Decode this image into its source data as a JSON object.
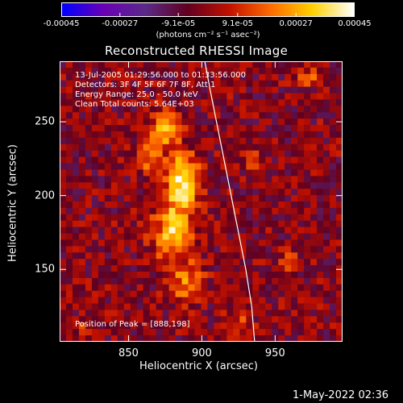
{
  "colorbar": {
    "ticks": [
      "-0.00045",
      "-0.00027",
      "-9.1e-05",
      "9.1e-05",
      "0.00027",
      "0.00045"
    ],
    "tick_values": [
      -0.00045,
      -0.00027,
      -9.1e-05,
      9.1e-05,
      0.00027,
      0.00045
    ],
    "unit": "(photons cm⁻² s⁻¹ asec⁻²)",
    "colormap": [
      "#0000ff",
      "#6a00b5",
      "#5a2a88",
      "#600020",
      "#c01000",
      "#ff6a00",
      "#ffd000",
      "#ffffff"
    ]
  },
  "info": {
    "line1": "13-Jul-2005 01:29:56.000 to 01:33:56.000",
    "line2": "Detectors: 3F 4F 5F 6F 7F 8F, Att 1",
    "line3": "Energy Range: 25.0 - 50.0 keV",
    "line4": "Clean     Total counts: 5.64E+03",
    "peak": "Position of Peak = [888,198]"
  },
  "footer": {
    "timestamp": "1-May-2022 02:36"
  },
  "chart_data": {
    "type": "heatmap",
    "title": "Reconstructed RHESSI Image",
    "xlabel": "Heliocentric X (arcsec)",
    "ylabel": "Heliocentric Y (arcsec)",
    "xlim": [
      803,
      996
    ],
    "ylim": [
      101,
      291
    ],
    "x_ticks": [
      850,
      900,
      950
    ],
    "y_ticks": [
      150,
      200,
      250
    ],
    "value_range": [
      -0.00045,
      0.00045
    ],
    "peak_position": [
      888,
      198
    ],
    "sources": [
      {
        "x": 887,
        "y": 210,
        "sigma_x": 8,
        "sigma_y": 12,
        "amplitude": 0.00045
      },
      {
        "x": 880,
        "y": 175,
        "sigma_x": 9,
        "sigma_y": 14,
        "amplitude": 0.00036
      },
      {
        "x": 875,
        "y": 245,
        "sigma_x": 7,
        "sigma_y": 8,
        "amplitude": 0.0003
      },
      {
        "x": 890,
        "y": 140,
        "sigma_x": 8,
        "sigma_y": 9,
        "amplitude": 0.00025
      },
      {
        "x": 865,
        "y": 225,
        "sigma_x": 6,
        "sigma_y": 7,
        "amplitude": 0.00024
      },
      {
        "x": 975,
        "y": 280,
        "sigma_x": 6,
        "sigma_y": 4,
        "amplitude": 0.0002
      },
      {
        "x": 960,
        "y": 155,
        "sigma_x": 4,
        "sigma_y": 4,
        "amplitude": 0.00016
      },
      {
        "x": 935,
        "y": 225,
        "sigma_x": 5,
        "sigma_y": 5,
        "amplitude": 0.00014
      },
      {
        "x": 820,
        "y": 110,
        "sigma_x": 6,
        "sigma_y": 5,
        "amplitude": 0.00013
      },
      {
        "x": 925,
        "y": 115,
        "sigma_x": 7,
        "sigma_y": 6,
        "amplitude": 0.00015
      }
    ],
    "limb_curve": {
      "x": [
        902,
        906,
        910,
        915,
        920,
        925,
        930,
        934,
        936
      ],
      "y": [
        291,
        270,
        250,
        225,
        200,
        175,
        150,
        125,
        101
      ]
    }
  }
}
